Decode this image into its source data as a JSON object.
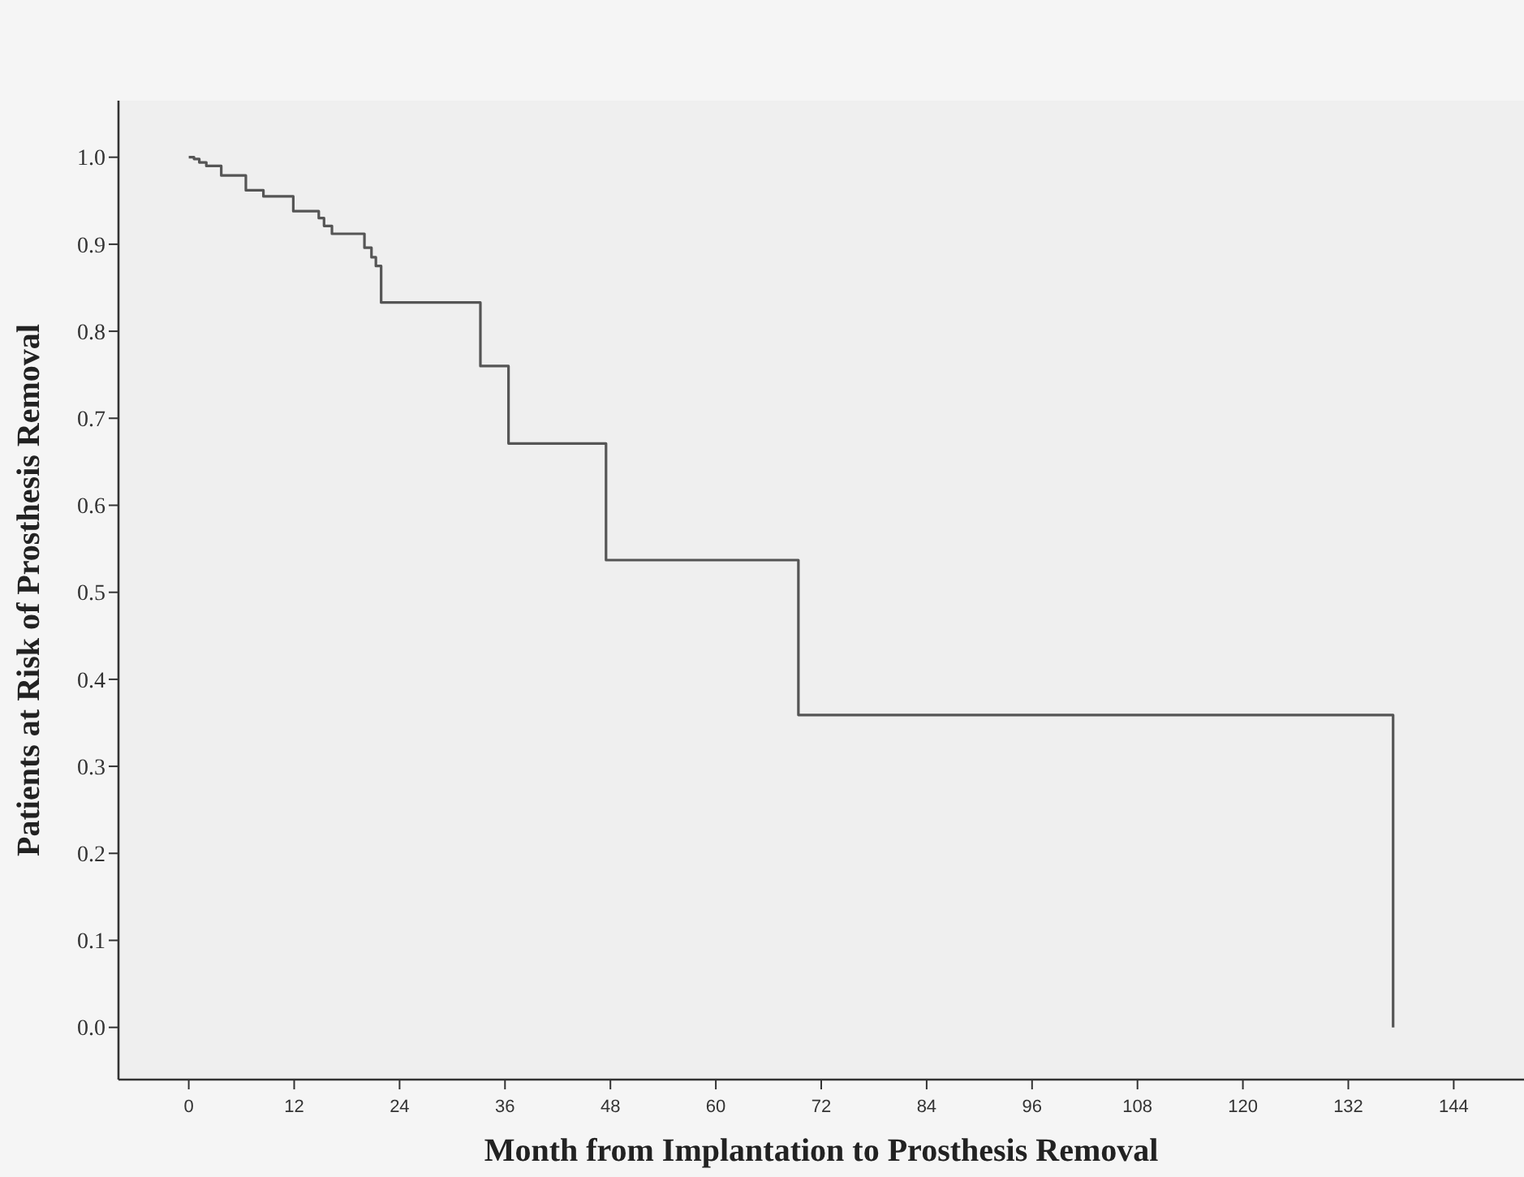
{
  "chart_data": {
    "type": "step",
    "xlabel": "Month from Implantation to Prosthesis Removal",
    "ylabel": "Patients at Risk of Prosthesis Removal",
    "x": [
      0,
      0.6,
      1.2,
      2,
      3.7,
      6.5,
      8.5,
      11.9,
      14.8,
      15.4,
      16.3,
      20,
      20.8,
      21.3,
      21.9,
      33.2,
      36.4,
      47.5,
      69.4,
      137.1
    ],
    "series": [
      {
        "color": "#555555",
        "values": [
          1.0,
          0.998,
          0.994,
          0.99,
          0.979,
          0.962,
          0.955,
          0.938,
          0.93,
          0.921,
          0.912,
          0.896,
          0.885,
          0.875,
          0.833,
          0.76,
          0.671,
          0.537,
          0.359,
          0.0
        ]
      }
    ],
    "xlim": [
      -8,
      152
    ],
    "xticks": [
      0,
      12,
      24,
      36,
      48,
      60,
      72,
      84,
      96,
      108,
      120,
      132,
      144
    ],
    "ylim": [
      -0.06,
      1.065
    ],
    "yticks": [
      {
        "value": 0,
        "label": "0.0"
      },
      {
        "value": 0.1,
        "label": "0.1"
      },
      {
        "value": 0.2,
        "label": "0.2"
      },
      {
        "value": 0.3,
        "label": "0.3"
      },
      {
        "value": 0.4,
        "label": "0.4"
      },
      {
        "value": 0.5,
        "label": "0.5"
      },
      {
        "value": 0.6,
        "label": "0.6"
      },
      {
        "value": 0.7,
        "label": "0.7"
      },
      {
        "value": 0.8,
        "label": "0.8"
      },
      {
        "value": 0.9,
        "label": "0.9"
      },
      {
        "value": 1,
        "label": "1.0"
      }
    ],
    "grid": false
  }
}
